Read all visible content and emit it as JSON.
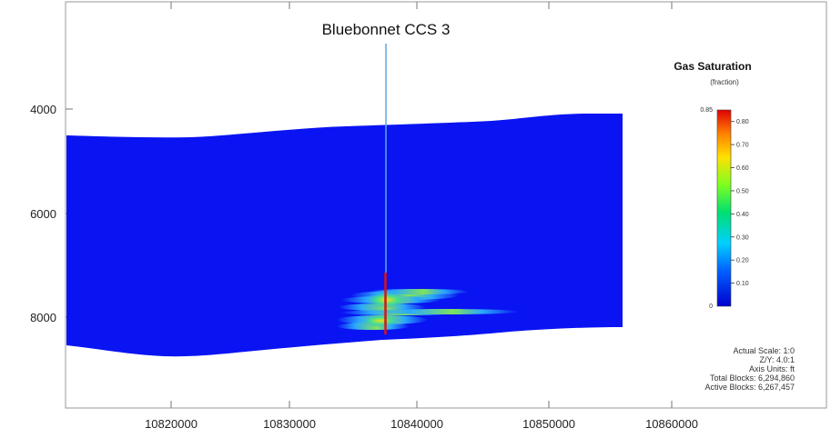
{
  "well": {
    "name": "Bluebonnet CCS 3"
  },
  "axes": {
    "x_ticks": [
      "10820000",
      "10830000",
      "10840000",
      "10850000",
      "10860000"
    ],
    "y_ticks": [
      "4000",
      "6000",
      "8000"
    ]
  },
  "legend": {
    "title": "Gas Saturation",
    "unit": "(fraction)",
    "max_label": "0.85",
    "min_label": "0",
    "tick_labels": [
      "0.80",
      "0.70",
      "0.60",
      "0.50",
      "0.40",
      "0.30",
      "0.20",
      "0.10"
    ],
    "ticks": [
      0.8,
      0.7,
      0.6,
      0.5,
      0.4,
      0.3,
      0.2,
      0.1
    ],
    "max": 0.85,
    "min": 0.0
  },
  "info": {
    "actual_scale": "Actual Scale: 1:0",
    "zy_ratio": "Z/Y: 4.0:1",
    "axis_units": "Axis Units: ft",
    "total_blocks": "Total Blocks: 6,294,860",
    "active_blocks": "Active Blocks: 6,267,457"
  },
  "colors": {
    "reservoir": "#0a14f2",
    "well_line": "#5aa9e6",
    "well_hot": "#e01010",
    "plume_low": "#2aa7ff",
    "plume_mid": "#35e070",
    "plume_high": "#e8e020"
  }
}
